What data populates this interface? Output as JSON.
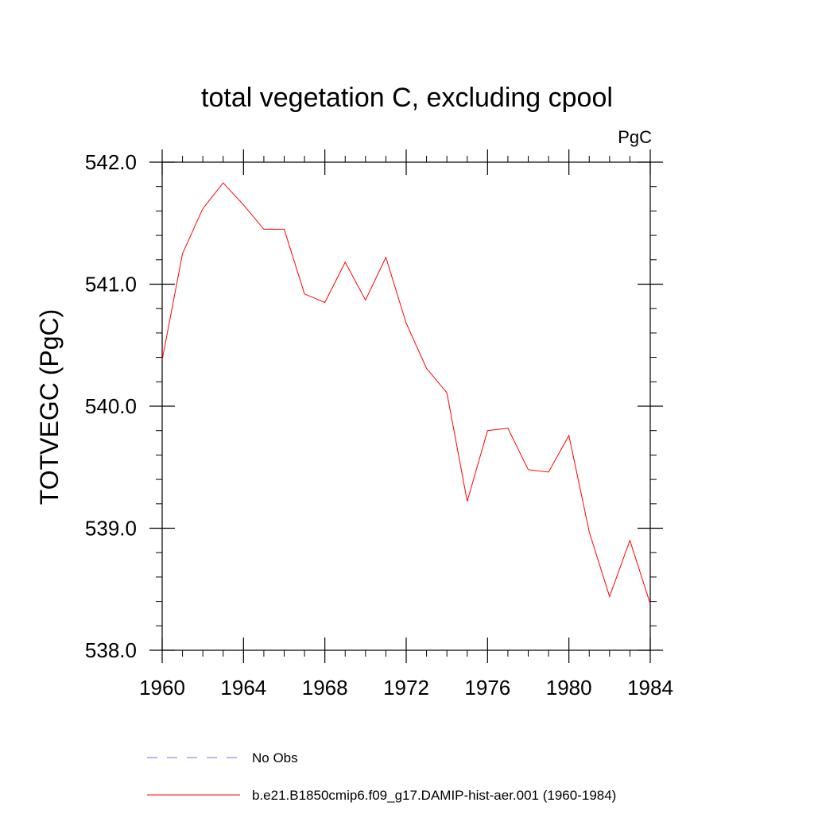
{
  "chart_data": {
    "type": "line",
    "title": "total vegetation C, excluding cpool",
    "units": "PgC",
    "ylabel": "TOTVEGC  (PgC)",
    "xlabel": "",
    "xlim": [
      1960,
      1984
    ],
    "ylim": [
      538.0,
      542.0
    ],
    "x_ticks": [
      1960,
      1964,
      1968,
      1972,
      1976,
      1980,
      1984
    ],
    "x_tick_labels": [
      "1960",
      "1964",
      "1968",
      "1972",
      "1976",
      "1980",
      "1984"
    ],
    "y_ticks": [
      538.0,
      539.0,
      540.0,
      541.0,
      542.0
    ],
    "y_tick_labels": [
      "538.0",
      "539.0",
      "540.0",
      "541.0",
      "542.0"
    ],
    "grid": false,
    "legend_position": "bottom",
    "series": [
      {
        "name": "b.e21.B1850cmip6.f09_g17.DAMIP-hist-aer.001 (1960-1984)",
        "color": "#ff0000",
        "dash": "solid",
        "x": [
          1960,
          1961,
          1962,
          1963,
          1964,
          1965,
          1966,
          1967,
          1968,
          1969,
          1970,
          1971,
          1972,
          1973,
          1974,
          1975,
          1976,
          1977,
          1978,
          1979,
          1980,
          1981,
          1982,
          1983,
          1984
        ],
        "values": [
          540.38,
          541.25,
          541.62,
          541.83,
          541.65,
          541.45,
          541.45,
          540.92,
          540.85,
          541.18,
          540.87,
          541.22,
          540.68,
          540.31,
          540.11,
          539.22,
          539.8,
          539.82,
          539.48,
          539.46,
          539.76,
          538.97,
          538.44,
          538.9,
          538.38
        ]
      }
    ],
    "legend": [
      {
        "label": "No Obs",
        "color": "#7b6fd0",
        "dash": "dashed"
      },
      {
        "label": "b.e21.B1850cmip6.f09_g17.DAMIP-hist-aer.001 (1960-1984)",
        "color": "#ff0000",
        "dash": "solid"
      }
    ]
  }
}
